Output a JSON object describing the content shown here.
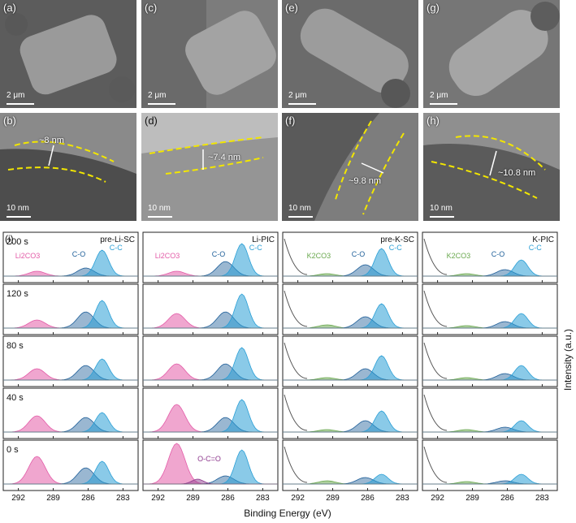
{
  "sem_panels": [
    {
      "label": "(a)",
      "scale": "2 μm"
    },
    {
      "label": "(c)",
      "scale": "2 μm"
    },
    {
      "label": "(e)",
      "scale": "2 μm"
    },
    {
      "label": "(g)",
      "scale": "2 μm"
    }
  ],
  "tem_panels": [
    {
      "label": "(b)",
      "scale": "10 nm",
      "thickness": "~8 nm"
    },
    {
      "label": "(d)",
      "scale": "10 nm",
      "thickness": "~7.4 nm"
    },
    {
      "label": "(f)",
      "scale": "10 nm",
      "thickness": "~9.8 nm"
    },
    {
      "label": "(h)",
      "scale": "10 nm",
      "thickness": "~10.8 nm"
    }
  ],
  "xps": {
    "panel_label": "(i)",
    "columns": [
      "pre-Li-SC",
      "Li-PIC",
      "pre-K-SC",
      "K-PIC"
    ],
    "times": [
      "200 s",
      "120 s",
      "80 s",
      "40 s",
      "0 s"
    ],
    "annotations": {
      "li2co3": "Li2CO3",
      "k2co3": "K2CO3",
      "co": "C-O",
      "cc": "C-C",
      "oco": "O-C=O"
    },
    "xlabel": "Binding Energy (eV)",
    "ylabel": "Intensity (a.u.)",
    "ticks": [
      "292",
      "289",
      "286",
      "283"
    ],
    "colors": {
      "li_peak": "#e35ca8",
      "cc_peak": "#2a9fd6",
      "co_peak": "#1f5f99",
      "k_peak": "#6aa84f",
      "oco_peak": "#8e3a8e",
      "tem_line": "#f2e600"
    }
  }
}
